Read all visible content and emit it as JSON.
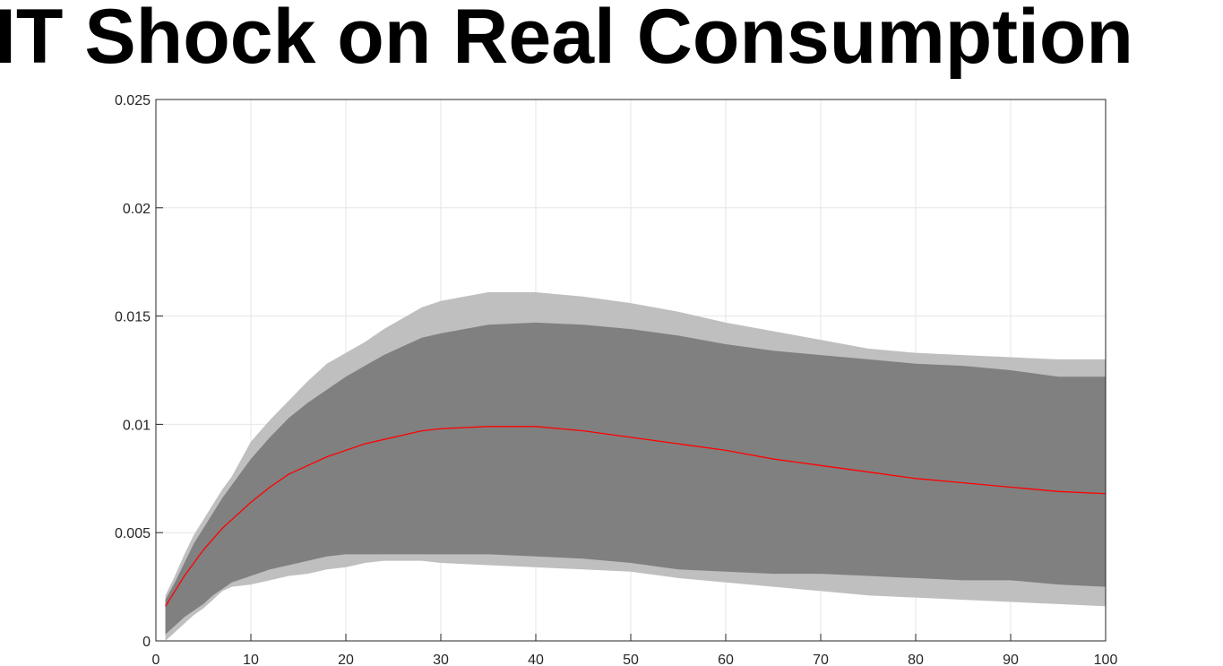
{
  "chart_data": {
    "type": "line",
    "title": "IT Shock on Real Consumption",
    "x": [
      1,
      2,
      3,
      4,
      5,
      6,
      7,
      8,
      10,
      12,
      14,
      16,
      18,
      20,
      22,
      24,
      26,
      28,
      30,
      35,
      40,
      45,
      50,
      55,
      60,
      65,
      70,
      75,
      80,
      85,
      90,
      95,
      100
    ],
    "bands": [
      {
        "color": "#bfbfbf",
        "lower": [
          0.0,
          0.0004,
          0.0008,
          0.0012,
          0.0015,
          0.0019,
          0.0023,
          0.0025,
          0.0026,
          0.0028,
          0.003,
          0.0031,
          0.0033,
          0.0034,
          0.0036,
          0.0037,
          0.0037,
          0.0037,
          0.0036,
          0.0035,
          0.0034,
          0.0033,
          0.0032,
          0.0029,
          0.0027,
          0.0025,
          0.0023,
          0.0021,
          0.002,
          0.0019,
          0.0018,
          0.0017,
          0.0016
        ],
        "upper": [
          0.0021,
          0.003,
          0.004,
          0.0049,
          0.0056,
          0.0063,
          0.007,
          0.0076,
          0.0092,
          0.0102,
          0.0111,
          0.012,
          0.0128,
          0.0133,
          0.0138,
          0.0144,
          0.0149,
          0.0154,
          0.0157,
          0.0161,
          0.0161,
          0.0159,
          0.0156,
          0.0152,
          0.0147,
          0.0143,
          0.0139,
          0.0135,
          0.0133,
          0.0132,
          0.0131,
          0.013,
          0.013
        ]
      },
      {
        "color": "#808080",
        "lower": [
          0.0003,
          0.0007,
          0.0011,
          0.0014,
          0.0017,
          0.0021,
          0.0024,
          0.0027,
          0.003,
          0.0033,
          0.0035,
          0.0037,
          0.0039,
          0.004,
          0.004,
          0.004,
          0.004,
          0.004,
          0.004,
          0.004,
          0.0039,
          0.0038,
          0.0036,
          0.0033,
          0.0032,
          0.0031,
          0.0031,
          0.003,
          0.0029,
          0.0028,
          0.0028,
          0.0026,
          0.0025
        ],
        "upper": [
          0.0019,
          0.0027,
          0.0036,
          0.0045,
          0.0052,
          0.0059,
          0.0066,
          0.0072,
          0.0084,
          0.0094,
          0.0103,
          0.011,
          0.0116,
          0.0122,
          0.0127,
          0.0132,
          0.0136,
          0.014,
          0.0142,
          0.0146,
          0.0147,
          0.0146,
          0.0144,
          0.0141,
          0.0137,
          0.0134,
          0.0132,
          0.013,
          0.0128,
          0.0127,
          0.0125,
          0.0122,
          0.0122
        ]
      }
    ],
    "series": [
      {
        "color": "#ff0000",
        "values": [
          0.0016,
          0.0023,
          0.003,
          0.0036,
          0.0042,
          0.0047,
          0.0052,
          0.0056,
          0.0064,
          0.0071,
          0.0077,
          0.0081,
          0.0085,
          0.0088,
          0.0091,
          0.0093,
          0.0095,
          0.0097,
          0.0098,
          0.0099,
          0.0099,
          0.0097,
          0.0094,
          0.0091,
          0.0088,
          0.0084,
          0.0081,
          0.0078,
          0.0075,
          0.0073,
          0.0071,
          0.0069,
          0.0068
        ]
      }
    ],
    "reference_line": {
      "value": 0,
      "color": "#0000ff"
    },
    "xlim": [
      0,
      100
    ],
    "xticks": [
      0,
      10,
      20,
      30,
      40,
      50,
      60,
      70,
      80,
      90,
      100
    ],
    "ylim": [
      0,
      0.025
    ],
    "yticks": [
      0,
      0.005,
      0.01,
      0.015,
      0.02,
      0.025
    ],
    "grid": true
  }
}
